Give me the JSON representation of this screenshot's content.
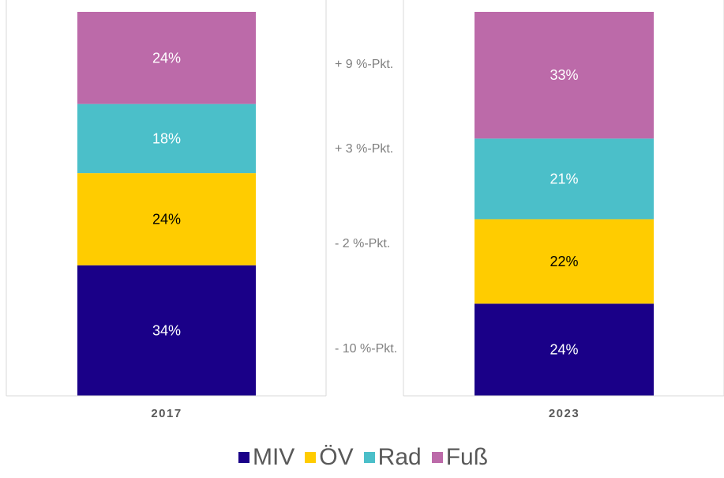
{
  "chart_data": {
    "type": "bar",
    "stacked": true,
    "percent": true,
    "categories": [
      "2017",
      "2023"
    ],
    "series": [
      {
        "name": "MIV",
        "color": "#1a0088",
        "values": [
          34,
          24
        ],
        "labels": [
          "34%",
          "24%"
        ],
        "label_color": "#ffffff"
      },
      {
        "name": "ÖV",
        "color": "#ffcc00",
        "values": [
          24,
          22
        ],
        "labels": [
          "24%",
          "22%"
        ],
        "label_color": "#000000"
      },
      {
        "name": "Rad",
        "color": "#4bbfc9",
        "values": [
          18,
          21
        ],
        "labels": [
          "18%",
          "21%"
        ],
        "label_color": "#ffffff"
      },
      {
        "name": "Fuß",
        "color": "#bc6aa9",
        "values": [
          24,
          33
        ],
        "labels": [
          "24%",
          "33%"
        ],
        "label_color": "#ffffff"
      }
    ],
    "annotations": [
      "- 10 %-Pkt.",
      "- 2 %-Pkt.",
      "+ 3 %-Pkt.",
      "+ 9 %-Pkt."
    ],
    "ylim": [
      0,
      100
    ],
    "legend": "bottom",
    "grid": false
  }
}
